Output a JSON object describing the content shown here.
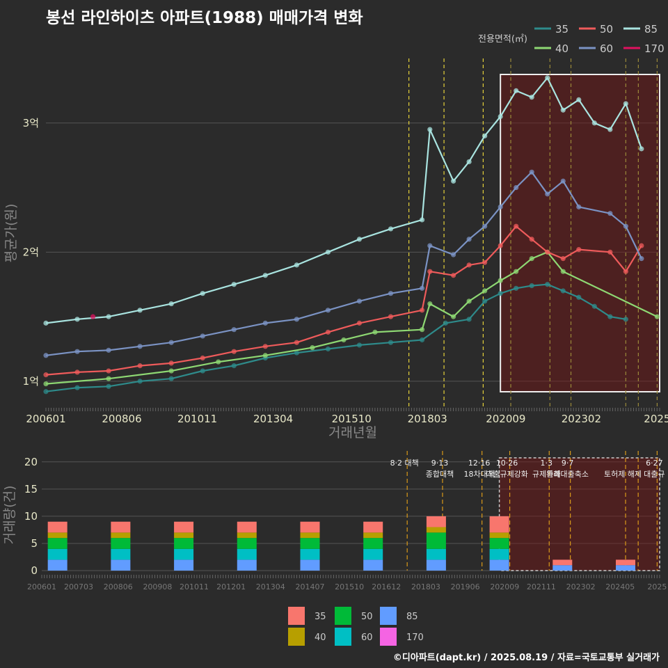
{
  "title": "봉선 라인하이츠 아파트(1988) 매매가격 변화",
  "credit": "©디아파트(dapt.kr) / 2025.08.19 / 자료=국토교통부 실거래가",
  "colors": {
    "a35": "#2e8b8b",
    "a40": "#8ed873",
    "a50": "#ef5b5b",
    "a60": "#7b93c4",
    "a85": "#a9e4e0",
    "a170": "#e0115f",
    "b35": "#f8766d",
    "b40": "#b79f00",
    "b50": "#00ba38",
    "b60": "#00bfc4",
    "b85": "#619cff",
    "b170": "#f564e3"
  },
  "chart_data": [
    {
      "type": "line",
      "title": "봉선 라인하이츠 아파트(1988) 매매가격 변화",
      "xlabel": "거래년월",
      "ylabel": "평균가(원)",
      "x_range": [
        2006.0,
        2025.58
      ],
      "ylim": [
        0.8,
        3.5
      ],
      "y_unit": "억",
      "yticks": [
        {
          "v": 1,
          "label": "1억"
        },
        {
          "v": 2,
          "label": "2억"
        },
        {
          "v": 3,
          "label": "3억"
        }
      ],
      "xticks": [
        {
          "v": 2006.0,
          "label": "200601"
        },
        {
          "v": 2008.42,
          "label": "200806"
        },
        {
          "v": 2010.83,
          "label": "201011"
        },
        {
          "v": 2013.25,
          "label": "201304"
        },
        {
          "v": 2015.75,
          "label": "201510"
        },
        {
          "v": 2018.17,
          "label": "201803"
        },
        {
          "v": 2020.67,
          "label": "202009"
        },
        {
          "v": 2023.08,
          "label": "202302"
        },
        {
          "v": 2025.5,
          "label": "2025"
        }
      ],
      "legend_title": "전용면적(㎡)",
      "legend_position": "top-right",
      "legend": [
        "35",
        "50",
        "85",
        "40",
        "60",
        "170"
      ],
      "policy_lines": [
        2017.58,
        2018.7,
        2019.95,
        2020.83,
        2022.08,
        2022.75,
        2024.5,
        2024.9,
        2025.5
      ],
      "highlight_x_range": [
        2020.5,
        2025.58
      ],
      "series": [
        {
          "name": "35",
          "x": [
            2006.0,
            2007.0,
            2008.0,
            2009.0,
            2010.0,
            2011.0,
            2012.0,
            2013.0,
            2014.0,
            2015.0,
            2016.0,
            2017.0,
            2018.0,
            2018.75,
            2019.5,
            2020.0,
            2020.5,
            2021.0,
            2021.5,
            2022.0,
            2022.5,
            2023.0,
            2023.5,
            2024.0,
            2024.5
          ],
          "y": [
            0.92,
            0.95,
            0.96,
            1.0,
            1.02,
            1.08,
            1.12,
            1.18,
            1.22,
            1.25,
            1.28,
            1.3,
            1.32,
            1.45,
            1.48,
            1.62,
            1.68,
            1.72,
            1.74,
            1.75,
            1.7,
            1.65,
            1.58,
            1.5,
            1.48
          ]
        },
        {
          "name": "40",
          "x": [
            2006.0,
            2008.0,
            2010.0,
            2011.5,
            2013.0,
            2014.5,
            2015.5,
            2016.5,
            2018.0,
            2018.25,
            2019.0,
            2019.5,
            2020.0,
            2020.5,
            2021.0,
            2021.5,
            2022.0,
            2022.5,
            2025.5
          ],
          "y": [
            0.98,
            1.02,
            1.08,
            1.15,
            1.2,
            1.26,
            1.32,
            1.38,
            1.4,
            1.6,
            1.5,
            1.62,
            1.7,
            1.78,
            1.85,
            1.95,
            2.0,
            1.85,
            1.5
          ]
        },
        {
          "name": "50",
          "x": [
            2006.0,
            2007.0,
            2008.0,
            2009.0,
            2010.0,
            2011.0,
            2012.0,
            2013.0,
            2014.0,
            2015.0,
            2016.0,
            2017.0,
            2018.0,
            2018.25,
            2019.0,
            2019.5,
            2020.0,
            2020.5,
            2021.0,
            2021.5,
            2022.0,
            2022.5,
            2023.0,
            2024.0,
            2024.5,
            2025.0
          ],
          "y": [
            1.05,
            1.07,
            1.08,
            1.12,
            1.14,
            1.18,
            1.23,
            1.27,
            1.3,
            1.38,
            1.45,
            1.5,
            1.55,
            1.85,
            1.82,
            1.9,
            1.92,
            2.05,
            2.2,
            2.1,
            2.0,
            1.95,
            2.02,
            2.0,
            1.85,
            2.05
          ]
        },
        {
          "name": "60",
          "x": [
            2006.0,
            2007.0,
            2008.0,
            2009.0,
            2010.0,
            2011.0,
            2012.0,
            2013.0,
            2014.0,
            2015.0,
            2016.0,
            2017.0,
            2018.0,
            2018.25,
            2019.0,
            2019.5,
            2020.0,
            2020.5,
            2021.0,
            2021.5,
            2022.0,
            2022.5,
            2023.0,
            2024.0,
            2024.5,
            2025.0
          ],
          "y": [
            1.2,
            1.23,
            1.24,
            1.27,
            1.3,
            1.35,
            1.4,
            1.45,
            1.48,
            1.55,
            1.62,
            1.68,
            1.72,
            2.05,
            1.98,
            2.1,
            2.2,
            2.35,
            2.5,
            2.62,
            2.45,
            2.55,
            2.35,
            2.3,
            2.2,
            1.95
          ]
        },
        {
          "name": "85",
          "x": [
            2006.0,
            2007.0,
            2008.0,
            2009.0,
            2010.0,
            2011.0,
            2012.0,
            2013.0,
            2014.0,
            2015.0,
            2016.0,
            2017.0,
            2018.0,
            2018.25,
            2019.0,
            2019.5,
            2020.0,
            2020.5,
            2021.0,
            2021.5,
            2022.0,
            2022.5,
            2023.0,
            2023.5,
            2024.0,
            2024.5,
            2025.0
          ],
          "y": [
            1.45,
            1.48,
            1.5,
            1.55,
            1.6,
            1.68,
            1.75,
            1.82,
            1.9,
            2.0,
            2.1,
            2.18,
            2.25,
            2.95,
            2.55,
            2.7,
            2.9,
            3.05,
            3.25,
            3.2,
            3.35,
            3.1,
            3.18,
            3.0,
            2.95,
            3.15,
            2.8
          ]
        },
        {
          "name": "170",
          "x": [
            2007.5
          ],
          "y": [
            1.5
          ]
        }
      ]
    },
    {
      "type": "bar",
      "stacked": true,
      "xlabel": "",
      "ylabel": "거래량(건)",
      "ylim": [
        0,
        21
      ],
      "yticks": [
        0,
        5,
        10,
        15,
        20
      ],
      "x_range": [
        2006.0,
        2025.58
      ],
      "xticks": [
        {
          "v": 2006.0,
          "label": "200601"
        },
        {
          "v": 2007.17,
          "label": "200703"
        },
        {
          "v": 2008.42,
          "label": "200806"
        },
        {
          "v": 2009.67,
          "label": "200908"
        },
        {
          "v": 2010.83,
          "label": "201011"
        },
        {
          "v": 2012.0,
          "label": "201201"
        },
        {
          "v": 2013.25,
          "label": "201304"
        },
        {
          "v": 2014.5,
          "label": "201407"
        },
        {
          "v": 2015.75,
          "label": "201510"
        },
        {
          "v": 2016.92,
          "label": "201612"
        },
        {
          "v": 2018.17,
          "label": "201803"
        },
        {
          "v": 2019.42,
          "label": "201906"
        },
        {
          "v": 2020.67,
          "label": "202009"
        },
        {
          "v": 2021.83,
          "label": "202111"
        },
        {
          "v": 2023.08,
          "label": "202302"
        },
        {
          "v": 2024.33,
          "label": "202405"
        },
        {
          "v": 2025.5,
          "label": "2025"
        }
      ],
      "legend": [
        "35",
        "40",
        "50",
        "60",
        "85",
        "170"
      ],
      "legend_position": "bottom",
      "policy_lines": [
        2017.58,
        2018.7,
        2019.95,
        2020.83,
        2022.08,
        2022.75,
        2024.5,
        2024.9,
        2025.5
      ],
      "highlight_x_range": [
        2020.5,
        2025.58
      ],
      "series": [
        {
          "name": "35",
          "x": [
            2006.5,
            2008.5,
            2010.5,
            2012.5,
            2014.5,
            2016.5,
            2018.5,
            2020.5,
            2022.5,
            2024.5
          ],
          "values": [
            2,
            2,
            2,
            2,
            2,
            2,
            2,
            3,
            1,
            1
          ]
        },
        {
          "name": "40",
          "x": [
            2006.5,
            2008.5,
            2010.5,
            2012.5,
            2014.5,
            2016.5,
            2018.5,
            2020.5,
            2022.5,
            2024.5
          ],
          "values": [
            1,
            1,
            1,
            1,
            1,
            1,
            1,
            1,
            0,
            0
          ]
        },
        {
          "name": "50",
          "x": [
            2006.5,
            2008.5,
            2010.5,
            2012.5,
            2014.5,
            2016.5,
            2018.5,
            2020.5,
            2022.5,
            2024.5
          ],
          "values": [
            2,
            2,
            2,
            2,
            2,
            2,
            3,
            2,
            0,
            0
          ]
        },
        {
          "name": "60",
          "x": [
            2006.5,
            2008.5,
            2010.5,
            2012.5,
            2014.5,
            2016.5,
            2018.5,
            2020.5,
            2022.5,
            2024.5
          ],
          "values": [
            2,
            2,
            2,
            2,
            2,
            2,
            2,
            2,
            0,
            0
          ]
        },
        {
          "name": "85",
          "x": [
            2006.5,
            2008.5,
            2010.5,
            2012.5,
            2014.5,
            2016.5,
            2018.5,
            2020.5,
            2022.5,
            2024.5
          ],
          "values": [
            2,
            2,
            2,
            2,
            2,
            2,
            2,
            2,
            1,
            1
          ]
        },
        {
          "name": "170",
          "x": [
            2006.5,
            2008.5,
            2010.5,
            2012.5,
            2014.5,
            2016.5,
            2018.5,
            2020.5,
            2022.5,
            2024.5
          ],
          "values": [
            0,
            0,
            0,
            0,
            0,
            0,
            0,
            0,
            0,
            0
          ]
        }
      ],
      "annotations": [
        {
          "x": 2017.58,
          "lines": [
            "8·2 대책"
          ]
        },
        {
          "x": 2018.7,
          "lines": [
            "9·13",
            "종합대책"
          ]
        },
        {
          "x": 2019.95,
          "lines": [
            "12·16",
            "18차대책"
          ]
        },
        {
          "x": 2020.83,
          "lines": [
            "10·26",
            "대출규제강화"
          ]
        },
        {
          "x": 2022.08,
          "lines": [
            "1·3",
            "규제완화"
          ]
        },
        {
          "x": 2022.75,
          "lines": [
            "9·7",
            "특례대출축소"
          ]
        },
        {
          "x": 2024.5,
          "lines": [
            "",
            "토허제 해제"
          ]
        },
        {
          "x": 2025.5,
          "lines": [
            "6·27",
            "대출규"
          ]
        }
      ]
    }
  ]
}
